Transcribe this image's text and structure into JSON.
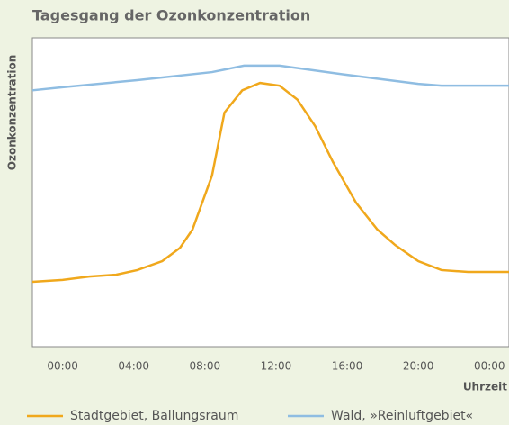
{
  "chart_data": {
    "type": "line",
    "title": "Tagesgang der Ozonkonzentration",
    "y_label": "Ozonkonzentration",
    "x_label": "Uhrzeit",
    "xlim": [
      -1.7,
      25.1
    ],
    "ylim": [
      0,
      100
    ],
    "xticks": [
      {
        "value": 0,
        "label": "00:00"
      },
      {
        "value": 4,
        "label": "04:00"
      },
      {
        "value": 8,
        "label": "08:00"
      },
      {
        "value": 12,
        "label": "12:00"
      },
      {
        "value": 16,
        "label": "16:00"
      },
      {
        "value": 20,
        "label": "20:00"
      },
      {
        "value": 24,
        "label": "00:00"
      }
    ],
    "grid": false,
    "series": [
      {
        "name": "Stadtgebiet, Ballungsraum",
        "color": "#f0a81c",
        "x": [
          -1.7,
          0,
          1.5,
          3.0,
          4.2,
          5.6,
          6.6,
          7.3,
          8.4,
          9.1,
          10.1,
          11.1,
          12.2,
          13.2,
          14.2,
          15.2,
          16.5,
          17.7,
          18.7,
          20,
          21.3,
          22.8,
          25.1
        ],
        "values": [
          21,
          21.6,
          22.7,
          23.3,
          24.8,
          27.7,
          32,
          37.9,
          55.4,
          75.8,
          83,
          85.4,
          84.5,
          80,
          71.4,
          59.8,
          46.6,
          37.9,
          32.9,
          27.7,
          24.8,
          24.2,
          24.2
        ]
      },
      {
        "name": "Wald, »Reinluftgebiet«",
        "color": "#8fbde2",
        "x": [
          -1.7,
          0,
          4.2,
          8.4,
          10.2,
          12.2,
          16,
          20,
          21.3,
          25.1
        ],
        "values": [
          83,
          84,
          86.3,
          88.9,
          91,
          91,
          88,
          85.1,
          84.5,
          84.5
        ]
      }
    ]
  }
}
